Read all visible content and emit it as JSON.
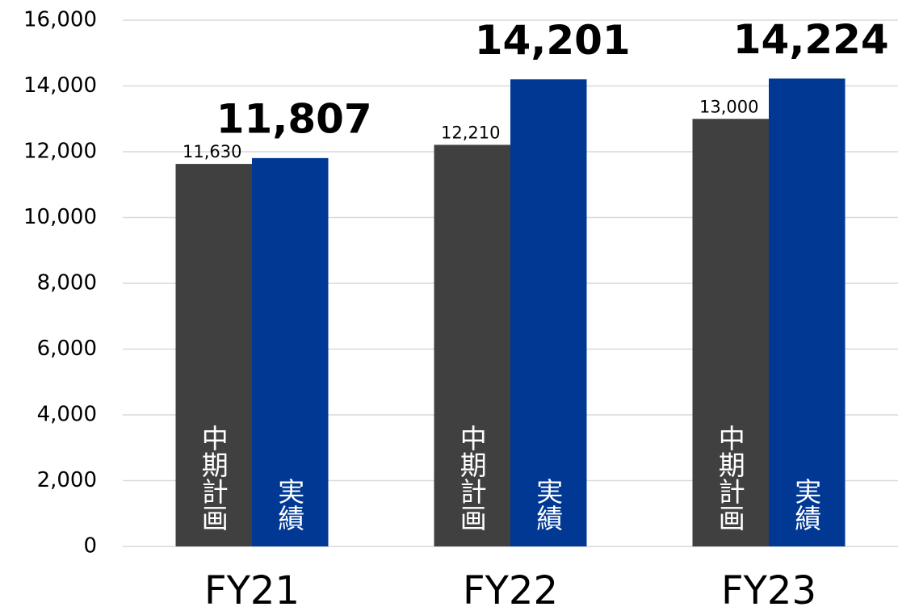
{
  "chart_data": {
    "type": "bar",
    "categories": [
      "FY21",
      "FY22",
      "FY23"
    ],
    "series": [
      {
        "name": "中期計画",
        "color": "#404040",
        "values": [
          11630,
          12210,
          13000
        ],
        "value_labels": [
          "11,630",
          "12,210",
          "13,000"
        ]
      },
      {
        "name": "実績",
        "color": "#003893",
        "values": [
          11807,
          14201,
          14224
        ],
        "value_labels": [
          "11,807",
          "14,201",
          "14,224"
        ]
      }
    ],
    "ylim": [
      0,
      16000
    ],
    "yticks": [
      0,
      {
        "value": 2000,
        "label": "2,000"
      },
      {
        "value": 4000,
        "label": "4,000"
      },
      {
        "value": 6000,
        "label": "6,000"
      },
      {
        "value": 8000,
        "label": "8,000"
      },
      {
        "value": 10000,
        "label": "10,000"
      },
      {
        "value": 12000,
        "label": "12,000"
      },
      {
        "value": 14000,
        "label": "14,000"
      },
      {
        "value": 16000,
        "label": "16,000"
      }
    ],
    "grid": true
  }
}
